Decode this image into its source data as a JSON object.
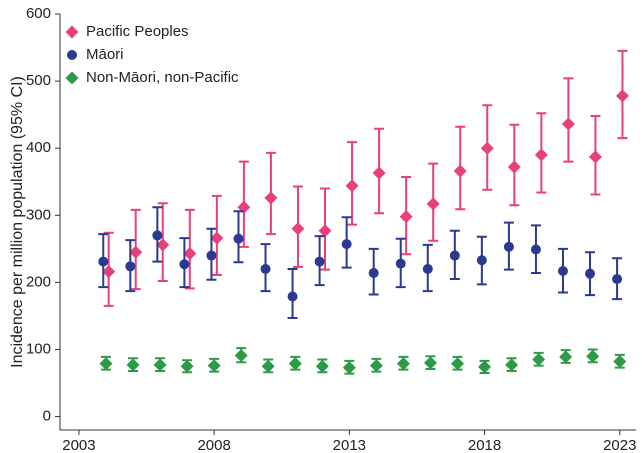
{
  "chart_data": {
    "type": "errorbar",
    "y_label": "Incidence per million population (95% CI)",
    "x": [
      2004,
      2005,
      2006,
      2007,
      2008,
      2009,
      2010,
      2011,
      2012,
      2013,
      2014,
      2015,
      2016,
      2017,
      2018,
      2019,
      2020,
      2021,
      2022,
      2023
    ],
    "xlim": [
      2002.3,
      2023.6
    ],
    "xticks": [
      2003,
      2008,
      2013,
      2018,
      2023
    ],
    "ylim": [
      -20,
      600
    ],
    "yticks": [
      0,
      100,
      200,
      300,
      400,
      500,
      600
    ],
    "legend": "upper-left",
    "series": [
      {
        "name": "Pacific Peoples",
        "color": "#e8407a",
        "marker": "diamond",
        "values": [
          216,
          245,
          256,
          243,
          266,
          312,
          326,
          280,
          277,
          344,
          363,
          298,
          317,
          366,
          400,
          372,
          390,
          436,
          387,
          478
        ],
        "upper": [
          274,
          308,
          318,
          308,
          329,
          380,
          393,
          343,
          340,
          409,
          429,
          357,
          377,
          432,
          464,
          435,
          452,
          504,
          448,
          545
        ],
        "lower": [
          165,
          190,
          202,
          191,
          211,
          253,
          272,
          223,
          219,
          286,
          303,
          242,
          262,
          309,
          338,
          315,
          334,
          380,
          331,
          415
        ]
      },
      {
        "name": "Māori",
        "color": "#2b3990",
        "marker": "circle",
        "values": [
          231,
          224,
          270,
          227,
          240,
          265,
          220,
          179,
          231,
          257,
          214,
          228,
          220,
          240,
          233,
          253,
          249,
          217,
          213,
          205
        ],
        "upper": [
          272,
          263,
          312,
          266,
          280,
          306,
          257,
          220,
          269,
          297,
          250,
          265,
          256,
          277,
          268,
          289,
          285,
          250,
          245,
          236
        ],
        "lower": [
          193,
          187,
          231,
          193,
          204,
          230,
          187,
          147,
          196,
          222,
          182,
          193,
          187,
          205,
          197,
          219,
          214,
          185,
          181,
          175
        ]
      },
      {
        "name": "Non-Māori, non-Pacific",
        "color": "#2e9a48",
        "marker": "diamond",
        "values": [
          79,
          77,
          77,
          75,
          76,
          91,
          75,
          79,
          75,
          73,
          76,
          79,
          80,
          79,
          74,
          77,
          85,
          89,
          90,
          82
        ],
        "upper": [
          89,
          87,
          87,
          84,
          86,
          102,
          85,
          89,
          85,
          83,
          86,
          89,
          90,
          89,
          83,
          87,
          95,
          99,
          100,
          92
        ],
        "lower": [
          70,
          68,
          68,
          66,
          67,
          81,
          66,
          70,
          66,
          64,
          67,
          70,
          71,
          70,
          65,
          68,
          76,
          80,
          81,
          73
        ]
      }
    ]
  }
}
